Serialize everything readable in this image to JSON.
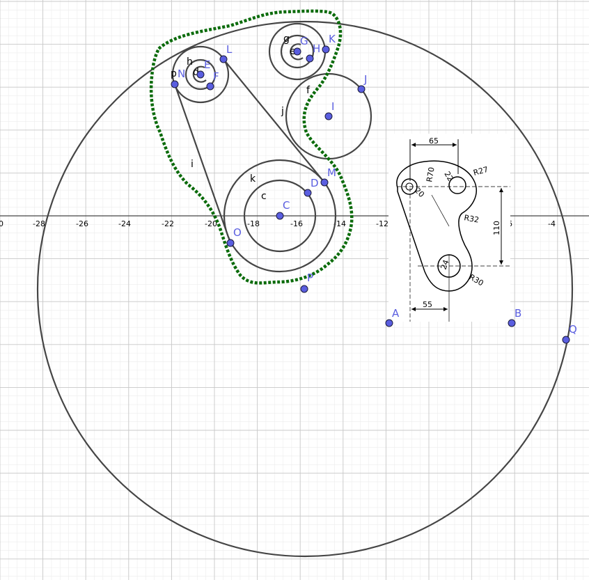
{
  "axis": {
    "x_ticks": [
      "0",
      "-28",
      "-26",
      "-24",
      "-22",
      "-20",
      "-18",
      "-16",
      "-14",
      "-12",
      "-6",
      "-4"
    ]
  },
  "points": {
    "A": "A",
    "B": "B",
    "C": "C",
    "D": "D",
    "E": "E",
    "F": "F",
    "G": "G",
    "H": "H",
    "I": "I",
    "J": "J",
    "K": "K",
    "L": "L",
    "M": "M",
    "N": "N",
    "O": "O",
    "P": "P",
    "Q": "Q"
  },
  "objects": {
    "c": "c",
    "d": "d",
    "e": "e",
    "f": "f",
    "g": "g",
    "h": "h",
    "i": "i",
    "j": "j",
    "k": "k",
    "p": "p"
  },
  "drawing": {
    "dim_65": "65",
    "dim_55": "55",
    "dim_110": "110",
    "r70": "R70",
    "r27": "R27",
    "r32": "R32",
    "r30": "R30",
    "d22": "22",
    "d20": "20",
    "d24": "24"
  },
  "colors": {
    "point_fill": "#5a5ee0",
    "point_label": "#5a5ee0",
    "curve": "#454545",
    "dotted_path": "#0b6b0b",
    "grid_major": "#c8c8c8",
    "grid_minor": "#ececec"
  }
}
